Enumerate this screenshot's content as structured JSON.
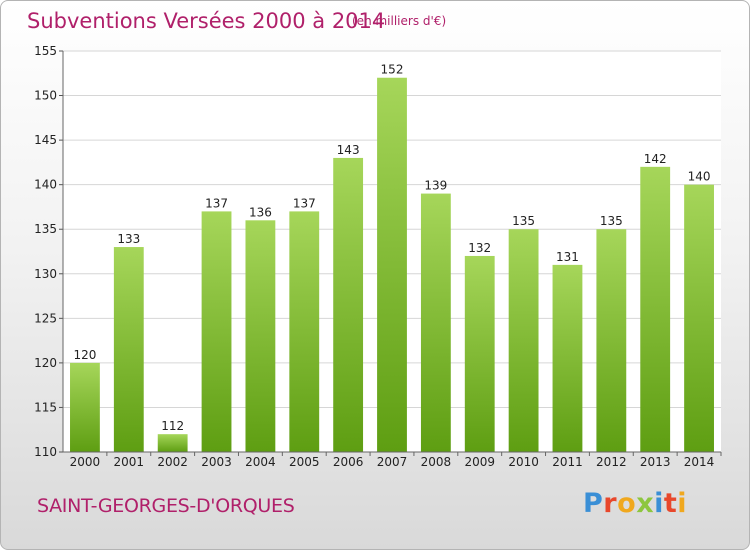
{
  "header": {
    "title": "Subventions Versées 2000 à 2014",
    "unit": "(en milliers d'€)"
  },
  "footer": {
    "commune": "SAINT-GEORGES-D'ORQUES",
    "logo_letters": [
      "P",
      "r",
      "o",
      "x",
      "i",
      "t",
      "i"
    ],
    "logo_colors": [
      "#3a8fd6",
      "#e8472b",
      "#f0a81e",
      "#8dc63f",
      "#3a8fd6",
      "#e8472b",
      "#f0a81e"
    ]
  },
  "colors": {
    "bar_light": "#a6d65a",
    "bar_dark": "#5e9e12",
    "grid": "#d6d6d6",
    "title": "#b0206a"
  },
  "chart_data": {
    "type": "bar",
    "title": "Subventions Versées 2000 à 2014",
    "subtitle": "(en milliers d'€)",
    "xlabel": "",
    "ylabel": "",
    "categories": [
      "2000",
      "2001",
      "2002",
      "2003",
      "2004",
      "2005",
      "2006",
      "2007",
      "2008",
      "2009",
      "2010",
      "2011",
      "2012",
      "2013",
      "2014"
    ],
    "values": [
      120,
      133,
      112,
      137,
      136,
      137,
      143,
      152,
      139,
      132,
      135,
      131,
      135,
      142,
      140
    ],
    "ylim": [
      110,
      155
    ],
    "yticks": [
      110,
      115,
      120,
      125,
      130,
      135,
      140,
      145,
      150,
      155
    ],
    "grid": true,
    "data_labels": true
  }
}
